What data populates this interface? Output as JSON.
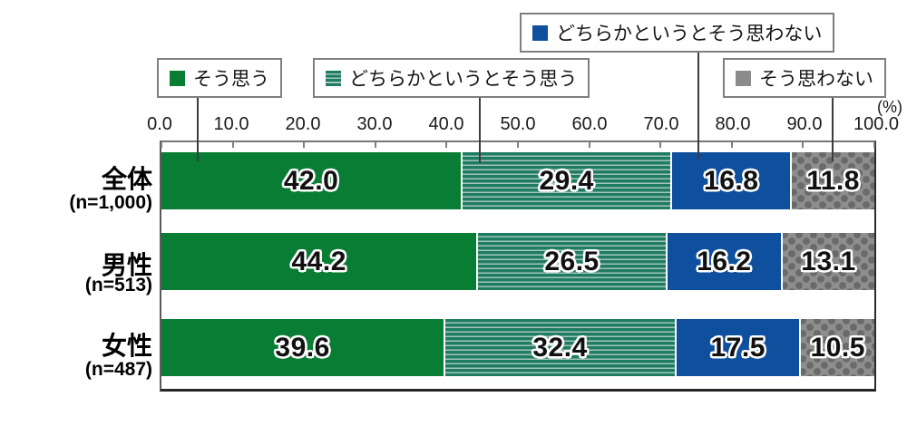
{
  "chart_data": {
    "type": "bar",
    "orientation": "horizontal-stacked",
    "title": "",
    "xlabel": "",
    "ylabel": "",
    "xlim": [
      0,
      100
    ],
    "grid": false,
    "unit_label": "(%)",
    "x_ticks": [
      "0.0",
      "10.0",
      "20.0",
      "30.0",
      "40.0",
      "50.0",
      "60.0",
      "70.0",
      "80.0",
      "90.0",
      "100.0"
    ],
    "legend_position": "top-callouts",
    "legend": [
      {
        "label": "そう思う",
        "style": "green",
        "color": "#087d33"
      },
      {
        "label": "どちらかというとそう思う",
        "style": "stripes",
        "color": "#1f7b62"
      },
      {
        "label": "どちらかというとそう思わない",
        "style": "blue",
        "color": "#0e4f9e"
      },
      {
        "label": "そう思わない",
        "style": "dots",
        "color": "#8e8e8e"
      }
    ],
    "categories": [
      {
        "label": "全体",
        "n_label": "(n=1,000)"
      },
      {
        "label": "男性",
        "n_label": "(n=513)"
      },
      {
        "label": "女性",
        "n_label": "(n=487)"
      }
    ],
    "series": [
      {
        "name": "そう思う",
        "style": "green",
        "values": [
          42.0,
          44.2,
          39.6
        ]
      },
      {
        "name": "どちらかというとそう思う",
        "style": "stripes",
        "values": [
          29.4,
          26.5,
          32.4
        ]
      },
      {
        "name": "どちらかというとそう思わない",
        "style": "blue",
        "values": [
          16.8,
          16.2,
          17.5
        ]
      },
      {
        "name": "そう思わない",
        "style": "dots",
        "values": [
          11.8,
          13.1,
          10.5
        ]
      }
    ]
  }
}
